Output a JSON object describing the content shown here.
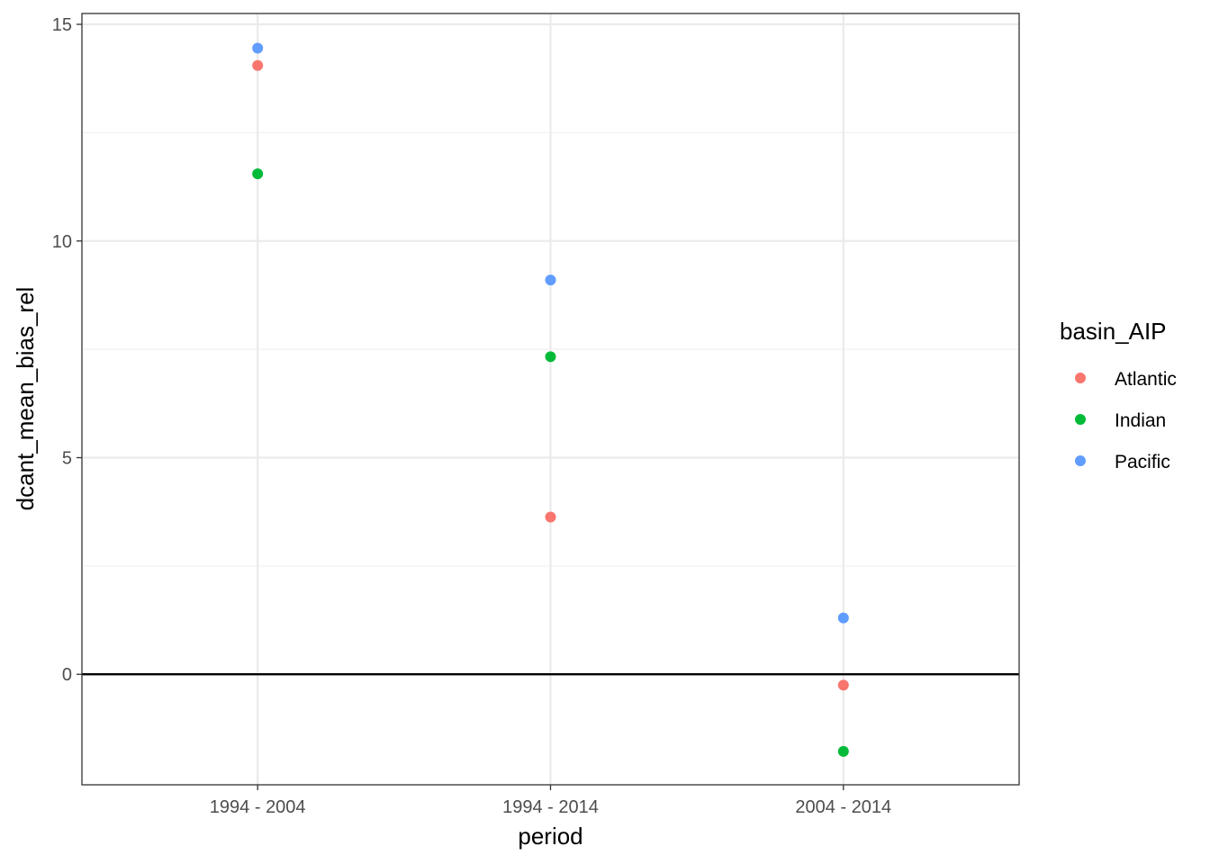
{
  "chart_data": {
    "type": "scatter",
    "xlabel": "period",
    "ylabel": "dcant_mean_bias_rel",
    "categories": [
      "1994 - 2004",
      "1994 - 2014",
      "2004 - 2014"
    ],
    "ylim": [
      -2.55,
      15.25
    ],
    "y_ticks": [
      "0",
      "5",
      "10",
      "15"
    ],
    "y_tick_values": [
      0,
      5,
      10,
      15
    ],
    "grid": true,
    "hline": 0,
    "legend": {
      "title": "basin_AIP",
      "placement": "right"
    },
    "series": [
      {
        "name": "Atlantic",
        "color": "#F8766D",
        "values": [
          14.05,
          3.63,
          -0.25
        ]
      },
      {
        "name": "Indian",
        "color": "#00BA38",
        "values": [
          11.55,
          7.33,
          -1.78
        ]
      },
      {
        "name": "Pacific",
        "color": "#619CFF",
        "values": [
          14.45,
          9.1,
          1.3
        ]
      }
    ]
  }
}
